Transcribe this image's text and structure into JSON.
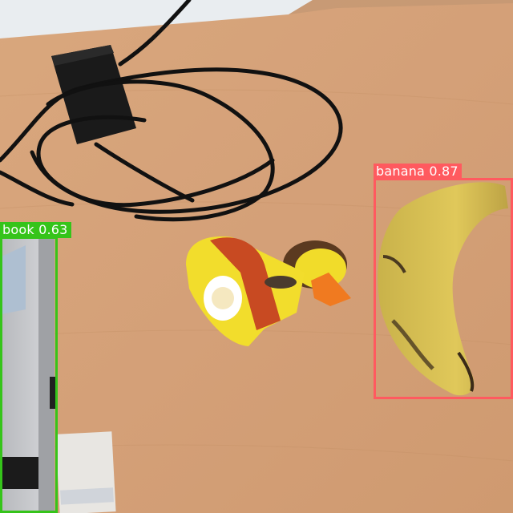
{
  "image": {
    "description_free_scene": true
  },
  "detections": [
    {
      "id": "banana",
      "label": "banana 0.87",
      "class": "banana",
      "score": 0.87,
      "color": "#ff5a5f"
    },
    {
      "id": "book",
      "label": "book 0.63",
      "class": "book",
      "score": 0.63,
      "color": "#35c41a"
    }
  ],
  "colors": {
    "table": "#d7a47a",
    "wall": "#e9edf0",
    "banana": "#d9c04e",
    "duck": "#f2dd2c",
    "laptop": "#c8c9cc"
  }
}
